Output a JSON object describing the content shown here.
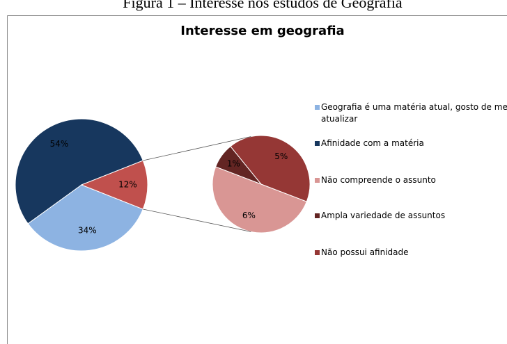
{
  "caption": "Figura 1 – Interesse nos estudos de Geografia",
  "chart_data": {
    "type": "pie",
    "title": "Interesse em geografia",
    "categories": [
      "Geografia é uma matéria atual, gosto de me atualizar",
      "Afinidade com a matéria",
      null
    ],
    "values": [
      34,
      54,
      12
    ],
    "value_labels": [
      "34%",
      "54%",
      "12%"
    ],
    "colors": [
      "#8db3e2",
      "#17375e",
      "#c0504d"
    ],
    "secondary": {
      "categories": [
        "Não compreende o assunto",
        "Ampla variedade de assuntos",
        "Não possui afinidade"
      ],
      "values": [
        6,
        1,
        5
      ],
      "value_labels": [
        "6%",
        "1%",
        "5%"
      ],
      "colors": [
        "#d99694",
        "#632523",
        "#953735"
      ]
    }
  }
}
